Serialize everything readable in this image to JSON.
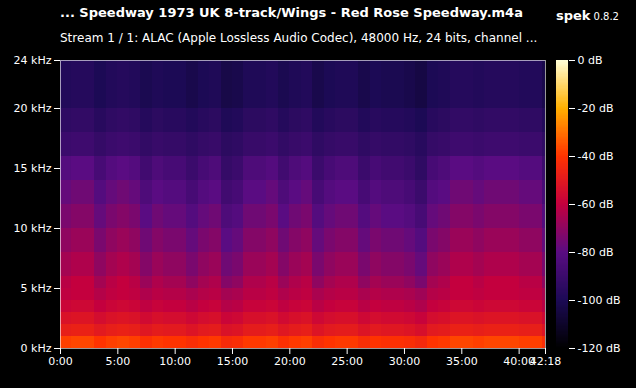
{
  "chart_data": {
    "type": "heatmap",
    "title": "... Speedway 1973 UK 8-track/Wings - Red Rose Speedway.m4a",
    "app_name": "spek",
    "app_version": "0.8.2",
    "subtitle": "Stream 1 / 1: ALAC (Apple Lossless Audio Codec), 48000 Hz, 24 bits, channel ...",
    "xlim": [
      0,
      2538
    ],
    "xticks": [
      {
        "value": 0,
        "label": "0:00"
      },
      {
        "value": 300,
        "label": "5:00"
      },
      {
        "value": 600,
        "label": "10:00"
      },
      {
        "value": 900,
        "label": "15:00"
      },
      {
        "value": 1200,
        "label": "20:00"
      },
      {
        "value": 1500,
        "label": "25:00"
      },
      {
        "value": 1800,
        "label": "30:00"
      },
      {
        "value": 2100,
        "label": "35:00"
      },
      {
        "value": 2400,
        "label": "40:00"
      },
      {
        "value": 2538,
        "label": "42:18"
      }
    ],
    "ylim": [
      0,
      24
    ],
    "yticks": [
      {
        "value": 0,
        "label": "0 kHz"
      },
      {
        "value": 5,
        "label": "5 kHz"
      },
      {
        "value": 10,
        "label": "10 kHz"
      },
      {
        "value": 15,
        "label": "15 kHz"
      },
      {
        "value": 20,
        "label": "20 kHz"
      },
      {
        "value": 24,
        "label": "24 kHz"
      }
    ],
    "x_bins": [
      0,
      60,
      120,
      180,
      240,
      300,
      360,
      420,
      480,
      540,
      600,
      660,
      720,
      780,
      840,
      900,
      960,
      1020,
      1080,
      1140,
      1200,
      1260,
      1320,
      1380,
      1440,
      1500,
      1560,
      1620,
      1680,
      1740,
      1800,
      1860,
      1920,
      1980,
      2040,
      2100,
      2160,
      2220,
      2280,
      2340,
      2400,
      2460,
      2520,
      2538
    ],
    "y_bins": [
      0,
      1,
      2,
      3,
      4,
      5,
      6,
      8,
      10,
      12,
      14,
      16,
      18,
      20,
      24
    ],
    "cells": [
      [
        -38,
        -37,
        -37,
        -40,
        -38,
        -37,
        -38,
        -41,
        -39,
        -40,
        -40,
        -42,
        -40,
        -39,
        -43,
        -42,
        -39,
        -39,
        -38,
        -41,
        -39,
        -38,
        -42,
        -40,
        -39,
        -39,
        -42,
        -40,
        -41,
        -41,
        -42,
        -44,
        -40,
        -39,
        -37,
        -37,
        -38,
        -37,
        -37,
        -37,
        -38,
        -38,
        -42
      ],
      [
        -48,
        -47,
        -47,
        -50,
        -48,
        -47,
        -48,
        -51,
        -49,
        -50,
        -50,
        -52,
        -50,
        -49,
        -53,
        -52,
        -49,
        -49,
        -48,
        -51,
        -49,
        -48,
        -52,
        -50,
        -49,
        -49,
        -52,
        -50,
        -51,
        -51,
        -52,
        -54,
        -50,
        -49,
        -47,
        -47,
        -48,
        -47,
        -47,
        -47,
        -48,
        -48,
        -52
      ],
      [
        -53,
        -52,
        -52,
        -55,
        -53,
        -52,
        -53,
        -56,
        -54,
        -55,
        -55,
        -57,
        -55,
        -54,
        -58,
        -57,
        -54,
        -54,
        -53,
        -56,
        -54,
        -53,
        -57,
        -55,
        -54,
        -54,
        -57,
        -55,
        -56,
        -56,
        -57,
        -59,
        -55,
        -54,
        -52,
        -52,
        -53,
        -52,
        -52,
        -52,
        -53,
        -53,
        -57
      ],
      [
        -58,
        -57,
        -57,
        -60,
        -58,
        -57,
        -58,
        -61,
        -59,
        -60,
        -60,
        -62,
        -60,
        -59,
        -63,
        -62,
        -59,
        -59,
        -58,
        -61,
        -59,
        -58,
        -62,
        -60,
        -59,
        -59,
        -62,
        -60,
        -61,
        -61,
        -62,
        -64,
        -60,
        -59,
        -57,
        -57,
        -58,
        -57,
        -57,
        -57,
        -58,
        -58,
        -62
      ],
      [
        -61,
        -60,
        -60,
        -63,
        -61,
        -60,
        -61,
        -64,
        -62,
        -63,
        -63,
        -65,
        -63,
        -62,
        -66,
        -65,
        -62,
        -62,
        -61,
        -64,
        -62,
        -61,
        -65,
        -63,
        -62,
        -62,
        -65,
        -63,
        -64,
        -64,
        -65,
        -67,
        -63,
        -62,
        -60,
        -60,
        -61,
        -60,
        -60,
        -60,
        -61,
        -61,
        -65
      ],
      [
        -62,
        -60,
        -60,
        -66,
        -62,
        -60,
        -62,
        -68,
        -64,
        -66,
        -66,
        -70,
        -66,
        -64,
        -72,
        -70,
        -64,
        -64,
        -62,
        -68,
        -64,
        -62,
        -70,
        -66,
        -64,
        -64,
        -70,
        -66,
        -68,
        -68,
        -70,
        -74,
        -66,
        -64,
        -60,
        -60,
        -62,
        -60,
        -60,
        -60,
        -62,
        -62,
        -70
      ],
      [
        -66,
        -64,
        -64,
        -70,
        -66,
        -64,
        -66,
        -72,
        -68,
        -70,
        -70,
        -74,
        -70,
        -68,
        -76,
        -74,
        -68,
        -68,
        -66,
        -72,
        -68,
        -66,
        -74,
        -70,
        -68,
        -68,
        -74,
        -70,
        -72,
        -72,
        -74,
        -78,
        -70,
        -68,
        -64,
        -64,
        -66,
        -64,
        -64,
        -64,
        -66,
        -66,
        -74
      ],
      [
        -70,
        -68,
        -68,
        -74,
        -70,
        -68,
        -70,
        -76,
        -72,
        -74,
        -74,
        -78,
        -74,
        -72,
        -80,
        -78,
        -72,
        -72,
        -70,
        -76,
        -72,
        -70,
        -78,
        -74,
        -72,
        -72,
        -78,
        -74,
        -76,
        -76,
        -78,
        -82,
        -74,
        -72,
        -68,
        -68,
        -70,
        -68,
        -68,
        -68,
        -70,
        -70,
        -78
      ],
      [
        -74,
        -72,
        -72,
        -78,
        -74,
        -72,
        -74,
        -80,
        -76,
        -78,
        -78,
        -82,
        -78,
        -76,
        -84,
        -82,
        -76,
        -76,
        -74,
        -80,
        -76,
        -74,
        -82,
        -78,
        -76,
        -76,
        -82,
        -78,
        -80,
        -80,
        -82,
        -86,
        -78,
        -76,
        -72,
        -72,
        -74,
        -72,
        -72,
        -72,
        -74,
        -74,
        -82
      ],
      [
        -78,
        -76,
        -76,
        -82,
        -78,
        -76,
        -78,
        -84,
        -80,
        -82,
        -82,
        -86,
        -82,
        -80,
        -88,
        -86,
        -80,
        -80,
        -78,
        -84,
        -80,
        -78,
        -86,
        -82,
        -80,
        -80,
        -86,
        -82,
        -84,
        -84,
        -86,
        -90,
        -82,
        -80,
        -76,
        -76,
        -78,
        -76,
        -76,
        -76,
        -78,
        -78,
        -86
      ],
      [
        -82,
        -80,
        -80,
        -86,
        -82,
        -80,
        -82,
        -88,
        -84,
        -86,
        -86,
        -90,
        -86,
        -84,
        -92,
        -90,
        -84,
        -84,
        -82,
        -88,
        -84,
        -82,
        -90,
        -86,
        -84,
        -84,
        -90,
        -86,
        -88,
        -88,
        -90,
        -94,
        -86,
        -84,
        -80,
        -80,
        -82,
        -80,
        -80,
        -80,
        -82,
        -82,
        -90
      ],
      [
        -90,
        -89,
        -89,
        -92,
        -90,
        -89,
        -90,
        -93,
        -91,
        -92,
        -92,
        -94,
        -92,
        -91,
        -95,
        -94,
        -91,
        -91,
        -90,
        -93,
        -91,
        -90,
        -94,
        -92,
        -91,
        -91,
        -94,
        -92,
        -93,
        -93,
        -94,
        -96,
        -92,
        -91,
        -89,
        -89,
        -90,
        -89,
        -89,
        -89,
        -90,
        -90,
        -94
      ],
      [
        -94,
        -93,
        -93,
        -96,
        -94,
        -93,
        -94,
        -97,
        -95,
        -96,
        -96,
        -98,
        -96,
        -95,
        -99,
        -98,
        -95,
        -95,
        -94,
        -97,
        -95,
        -94,
        -98,
        -96,
        -95,
        -95,
        -98,
        -96,
        -97,
        -97,
        -98,
        -100,
        -96,
        -95,
        -93,
        -93,
        -94,
        -93,
        -93,
        -93,
        -94,
        -94,
        -98
      ],
      [
        -98,
        -97,
        -97,
        -100,
        -98,
        -97,
        -98,
        -101,
        -99,
        -100,
        -100,
        -102,
        -100,
        -99,
        -103,
        -102,
        -99,
        -99,
        -98,
        -101,
        -99,
        -98,
        -102,
        -100,
        -99,
        -99,
        -102,
        -100,
        -101,
        -101,
        -102,
        -104,
        -100,
        -99,
        -97,
        -97,
        -98,
        -97,
        -97,
        -97,
        -98,
        -98,
        -102
      ]
    ],
    "colorbar": {
      "range": [
        -120,
        0
      ],
      "ticks": [
        {
          "value": 0,
          "label": "0 dB"
        },
        {
          "value": -20,
          "label": "-20 dB"
        },
        {
          "value": -40,
          "label": "-40 dB"
        },
        {
          "value": -60,
          "label": "-60 dB"
        },
        {
          "value": -80,
          "label": "-80 dB"
        },
        {
          "value": -100,
          "label": "-100 dB"
        },
        {
          "value": -120,
          "label": "-120 dB"
        }
      ]
    }
  }
}
